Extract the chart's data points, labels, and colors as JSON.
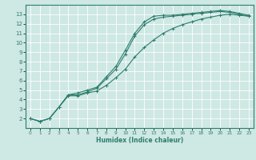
{
  "xlabel": "Humidex (Indice chaleur)",
  "ylabel": "",
  "xlim": [
    -0.5,
    23.5
  ],
  "ylim": [
    1,
    14
  ],
  "xticks": [
    0,
    1,
    2,
    3,
    4,
    5,
    6,
    7,
    8,
    9,
    10,
    11,
    12,
    13,
    14,
    15,
    16,
    17,
    18,
    19,
    20,
    21,
    22,
    23
  ],
  "yticks": [
    2,
    3,
    4,
    5,
    6,
    7,
    8,
    9,
    10,
    11,
    12,
    13
  ],
  "bg_color": "#cee8e4",
  "line_color": "#2e7d6e",
  "grid_color": "#ffffff",
  "line1_x": [
    0,
    1,
    2,
    3,
    4,
    5,
    6,
    7,
    8,
    9,
    10,
    11,
    12,
    13,
    14,
    15,
    16,
    17,
    18,
    19,
    20,
    21,
    22,
    23
  ],
  "line1_y": [
    2.0,
    1.7,
    2.0,
    3.2,
    4.5,
    4.7,
    5.0,
    5.3,
    6.4,
    7.5,
    9.2,
    11.0,
    12.2,
    12.8,
    12.9,
    12.9,
    13.0,
    13.1,
    13.2,
    13.3,
    13.4,
    13.3,
    13.1,
    12.9
  ],
  "line2_x": [
    0,
    1,
    2,
    3,
    4,
    5,
    6,
    7,
    8,
    9,
    10,
    11,
    12,
    13,
    14,
    15,
    16,
    17,
    18,
    19,
    20,
    21,
    22,
    23
  ],
  "line2_y": [
    2.0,
    1.7,
    2.0,
    3.2,
    4.5,
    4.5,
    4.8,
    5.2,
    6.2,
    7.2,
    8.8,
    10.7,
    11.9,
    12.5,
    12.7,
    12.8,
    12.9,
    13.0,
    13.1,
    13.2,
    13.3,
    13.2,
    13.0,
    12.8
  ],
  "line3_x": [
    0,
    1,
    2,
    3,
    4,
    5,
    6,
    7,
    8,
    9,
    10,
    11,
    12,
    13,
    14,
    15,
    16,
    17,
    18,
    19,
    20,
    21,
    22,
    23
  ],
  "line3_y": [
    2.0,
    1.7,
    2.0,
    3.2,
    4.4,
    4.4,
    4.7,
    4.9,
    5.5,
    6.3,
    7.2,
    8.5,
    9.5,
    10.3,
    11.0,
    11.5,
    11.9,
    12.2,
    12.5,
    12.7,
    12.9,
    13.0,
    12.9,
    12.8
  ]
}
